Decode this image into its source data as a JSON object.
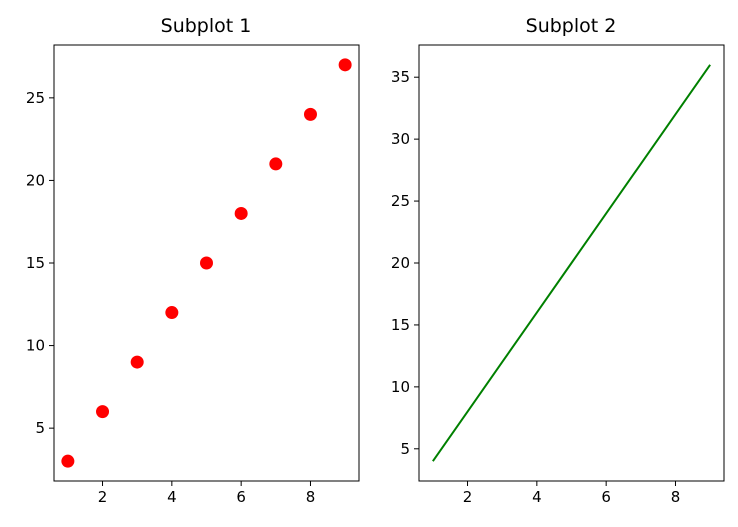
{
  "chart_data": [
    {
      "type": "scatter",
      "title": "Subplot 1",
      "xlabel": "",
      "ylabel": "",
      "x": [
        1,
        2,
        3,
        4,
        5,
        6,
        7,
        8,
        9
      ],
      "y": [
        3,
        6,
        9,
        12,
        15,
        18,
        21,
        24,
        27
      ],
      "color": "#ff0000",
      "xlim": [
        0.6,
        9.4
      ],
      "ylim": [
        1.8,
        28.2
      ],
      "xticks": [
        2,
        4,
        6,
        8
      ],
      "yticks": [
        5,
        10,
        15,
        20,
        25
      ],
      "grid": false
    },
    {
      "type": "line",
      "title": "Subplot 2",
      "xlabel": "",
      "ylabel": "",
      "x": [
        1,
        2,
        3,
        4,
        5,
        6,
        7,
        8,
        9
      ],
      "y": [
        4,
        8,
        12,
        16,
        20,
        24,
        28,
        32,
        36
      ],
      "color": "#008000",
      "xlim": [
        0.6,
        9.4
      ],
      "ylim": [
        2.4,
        37.6
      ],
      "xticks": [
        2,
        4,
        6,
        8
      ],
      "yticks": [
        5,
        10,
        15,
        20,
        25,
        30,
        35
      ],
      "grid": false
    }
  ]
}
